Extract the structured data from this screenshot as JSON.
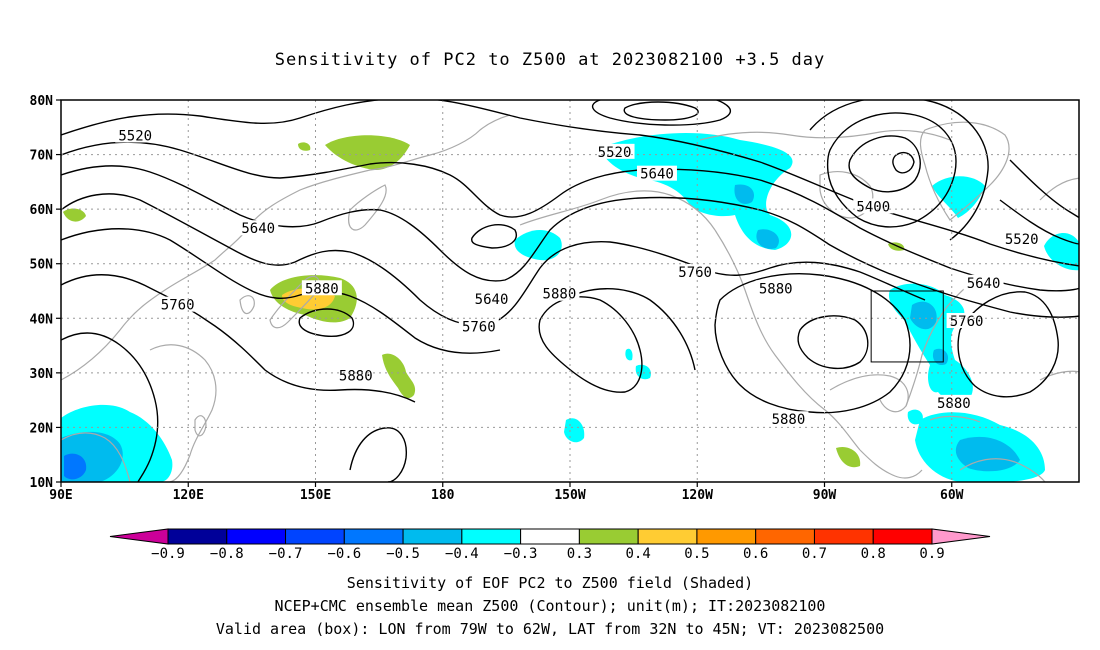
{
  "title": "Sensitivity of PC2 to Z500 at 2023082100 +3.5 day",
  "lat_labels": [
    "80N",
    "70N",
    "60N",
    "50N",
    "40N",
    "30N",
    "20N",
    "10N"
  ],
  "lon_labels": [
    "90E",
    "120E",
    "150E",
    "180",
    "150W",
    "120W",
    "90W",
    "60W"
  ],
  "contour_labels": [
    {
      "text": "5520",
      "at": [
        107.5,
        73.5
      ]
    },
    {
      "text": "5520",
      "at": [
        -139.5,
        70.5
      ]
    },
    {
      "text": "5520",
      "at": [
        -43.5,
        54.5
      ]
    },
    {
      "text": "5640",
      "at": [
        136.5,
        56.5
      ]
    },
    {
      "text": "5640",
      "at": [
        -129.5,
        66.5
      ]
    },
    {
      "text": "5640",
      "at": [
        -168.5,
        43.5
      ]
    },
    {
      "text": "5640",
      "at": [
        -52.5,
        46.5
      ]
    },
    {
      "text": "5760",
      "at": [
        117.5,
        42.5
      ]
    },
    {
      "text": "5760",
      "at": [
        -171.5,
        38.5
      ]
    },
    {
      "text": "5760",
      "at": [
        -120.5,
        48.5
      ]
    },
    {
      "text": "5760",
      "at": [
        -56.5,
        39.5
      ]
    },
    {
      "text": "5880",
      "at": [
        151.5,
        45.5
      ]
    },
    {
      "text": "5880",
      "at": [
        -152.5,
        44.5
      ]
    },
    {
      "text": "5880",
      "at": [
        -101.5,
        45.5
      ]
    },
    {
      "text": "5880",
      "at": [
        159.5,
        29.5
      ]
    },
    {
      "text": "5880",
      "at": [
        -98.5,
        21.5
      ]
    },
    {
      "text": "5880",
      "at": [
        -59.5,
        24.5
      ]
    },
    {
      "text": "5400",
      "at": [
        -78.5,
        60.5
      ]
    }
  ],
  "colorbar": {
    "tick_labels": [
      "−0.9",
      "−0.8",
      "−0.7",
      "−0.6",
      "−0.5",
      "−0.4",
      "−0.3",
      "0.3",
      "0.4",
      "0.5",
      "0.6",
      "0.7",
      "0.8",
      "0.9"
    ],
    "colors": [
      "#000099",
      "#0000ff",
      "#0044ff",
      "#0077ff",
      "#00bbee",
      "#00ffff",
      "#ffffff",
      "#99cc33",
      "#ffcc33",
      "#ff9900",
      "#ff6600",
      "#ff3300",
      "#ff0000"
    ],
    "left_arrow_color": "#cc0099",
    "right_arrow_color": "#ff99cc"
  },
  "captions": [
    "Sensitivity of EOF PC2 to Z500 field (Shaded)",
    "NCEP+CMC ensemble mean Z500 (Contour); unit(m); IT:2023082100",
    "Valid area (box): LON from 79W to 62W, LAT from 32N to 45N; VT: 2023082500"
  ],
  "valid_box": {
    "lon_west": -79,
    "lon_east": -62,
    "lat_south": 32,
    "lat_north": 45
  }
}
